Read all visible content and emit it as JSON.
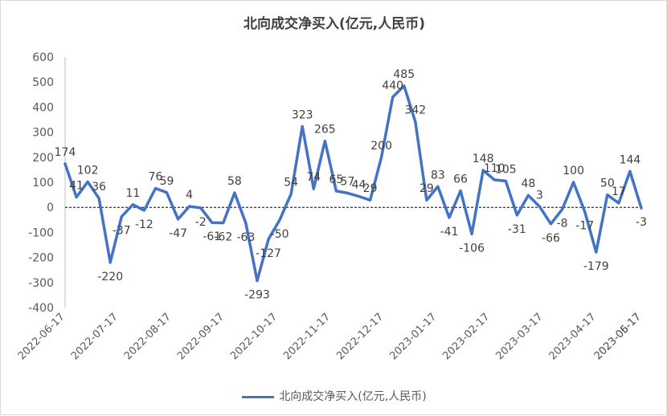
{
  "chart_data": {
    "type": "line",
    "title": "北向成交净买入(亿元,人民币)",
    "xlabel": "",
    "ylabel": "",
    "ylim": [
      -400,
      600
    ],
    "yticks": [
      600,
      500,
      400,
      300,
      200,
      100,
      0,
      -100,
      -200,
      -300,
      -400
    ],
    "xtick_labels": [
      "2022-06-17",
      "2022-07-17",
      "2022-08-17",
      "2022-09-17",
      "2022-10-17",
      "2022-11-17",
      "2022-12-17",
      "2023-01-17",
      "2023-02-17",
      "2023-03-17",
      "2023-04-17",
      "2023-05-17",
      "2023-06-17"
    ],
    "legend_position": "bottom",
    "grid": false,
    "series_color": "#4472c4",
    "series": [
      {
        "name": "北向成交净买入(亿元,人民币)",
        "values": [
          174,
          41,
          102,
          36,
          -220,
          -37,
          11,
          -12,
          76,
          59,
          -47,
          4,
          -2,
          -61,
          -62,
          58,
          -63,
          -293,
          -127,
          -50,
          54,
          323,
          74,
          265,
          65,
          57,
          44,
          29,
          200,
          440,
          485,
          342,
          29,
          83,
          -41,
          66,
          -106,
          148,
          110,
          105,
          -31,
          48,
          3,
          -66,
          -8,
          100,
          -17,
          -179,
          50,
          17,
          144,
          -3
        ]
      }
    ]
  }
}
